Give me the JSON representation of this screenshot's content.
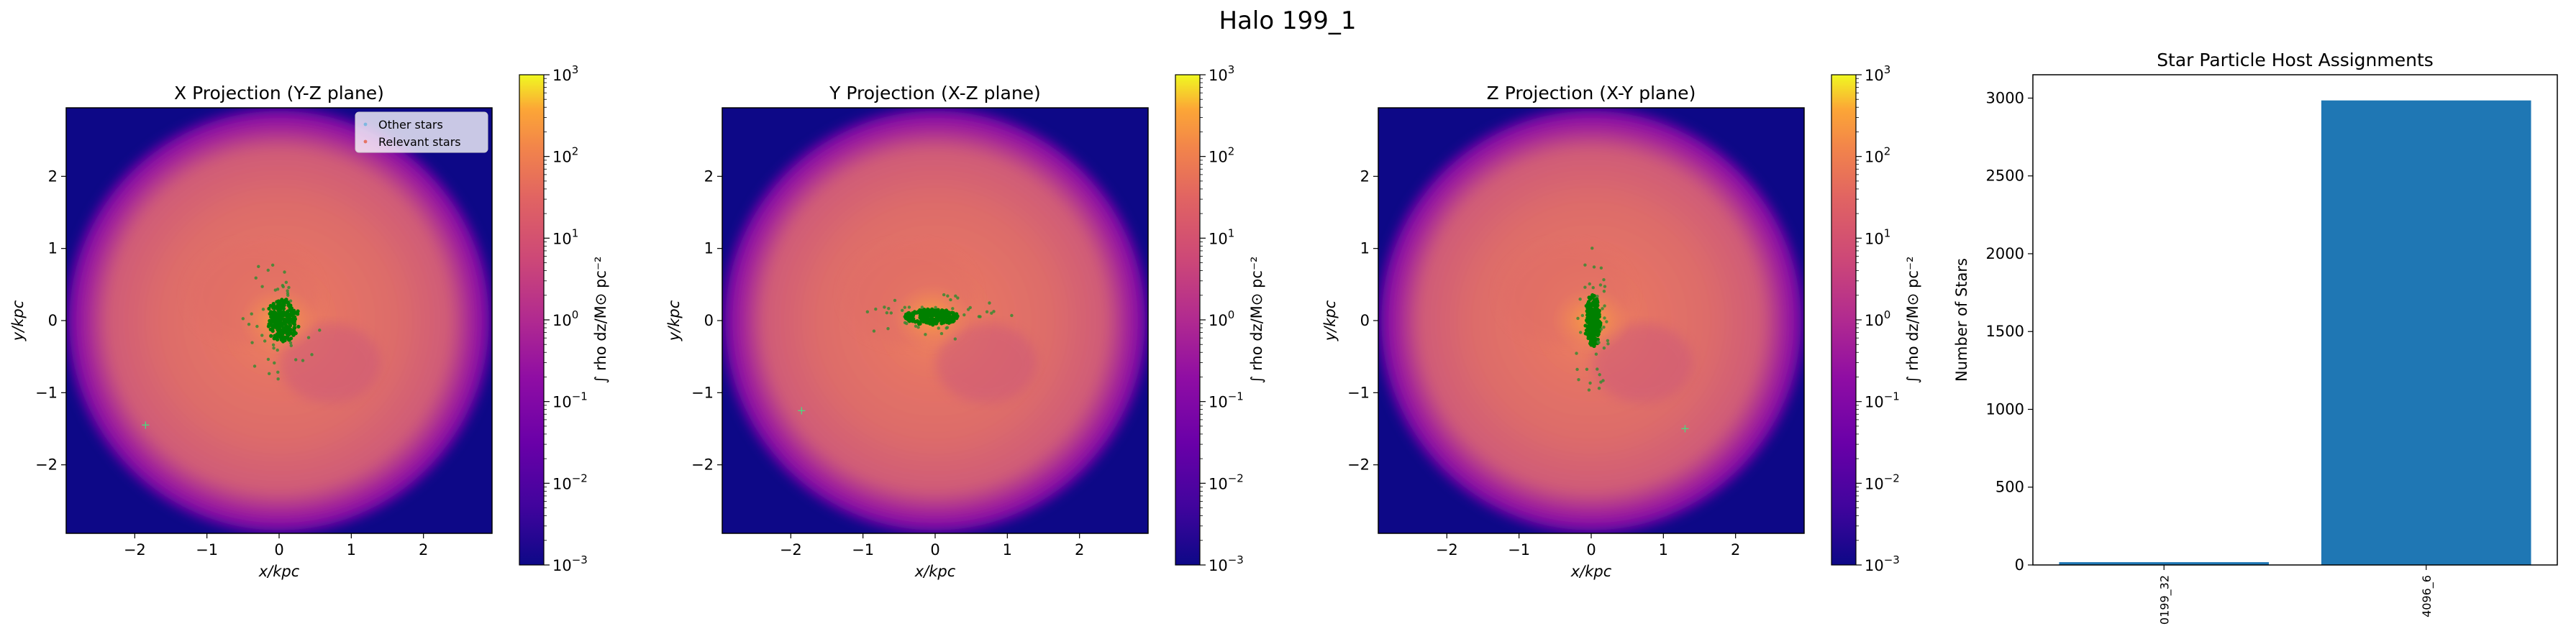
{
  "figure": {
    "suptitle": "Halo 199_1"
  },
  "projections": [
    {
      "title": "X Projection (Y-Z plane)",
      "xlabel": "x/kpc",
      "ylabel": "y/kpc",
      "xticks": [
        "−2",
        "−1",
        "0",
        "1",
        "2"
      ],
      "yticks": [
        "2",
        "1",
        "0",
        "−1",
        "−2"
      ],
      "colorbar_label": "∫ rho dz/M⊙ pc⁻²",
      "legend": {
        "other": "Other stars",
        "relevant": "Relevant stars"
      }
    },
    {
      "title": "Y Projection (X-Z plane)",
      "xlabel": "x/kpc",
      "ylabel": "y/kpc",
      "xticks": [
        "−2",
        "−1",
        "0",
        "1",
        "2"
      ],
      "yticks": [
        "2",
        "1",
        "0",
        "−1",
        "−2"
      ],
      "colorbar_label": "∫ rho dz/M⊙ pc⁻²"
    },
    {
      "title": "Z Projection (X-Y plane)",
      "xlabel": "x/kpc",
      "ylabel": "y/kpc",
      "xticks": [
        "−2",
        "−1",
        "0",
        "1",
        "2"
      ],
      "yticks": [
        "2",
        "1",
        "0",
        "−1",
        "−2"
      ],
      "colorbar_label": "∫ rho dz/M⊙ pc⁻²"
    }
  ],
  "colorbar": {
    "scale": "log",
    "range": [
      0.001,
      1000
    ],
    "colormap": "plasma",
    "tick_exponents": [
      "3",
      "2",
      "1",
      "0",
      "−1",
      "−2",
      "−3"
    ]
  },
  "image_extent_kpc": [
    -2.95,
    2.95
  ],
  "chart_data": {
    "type": "bar",
    "title": "Star Particle Host Assignments",
    "xlabel": "",
    "ylabel": "Number of Stars",
    "categories": [
      "0199_32",
      "4096_6"
    ],
    "values": [
      18,
      2985
    ],
    "ylim": [
      0,
      3150
    ],
    "yticks": [
      0,
      500,
      1000,
      1500,
      2000,
      2500,
      3000
    ],
    "bar_color": "#1f77b4",
    "grid": false
  },
  "colors": {
    "relevant_stars": "#008000",
    "cmap_low": "#0d0887",
    "cmap_high": "#f0f921"
  }
}
